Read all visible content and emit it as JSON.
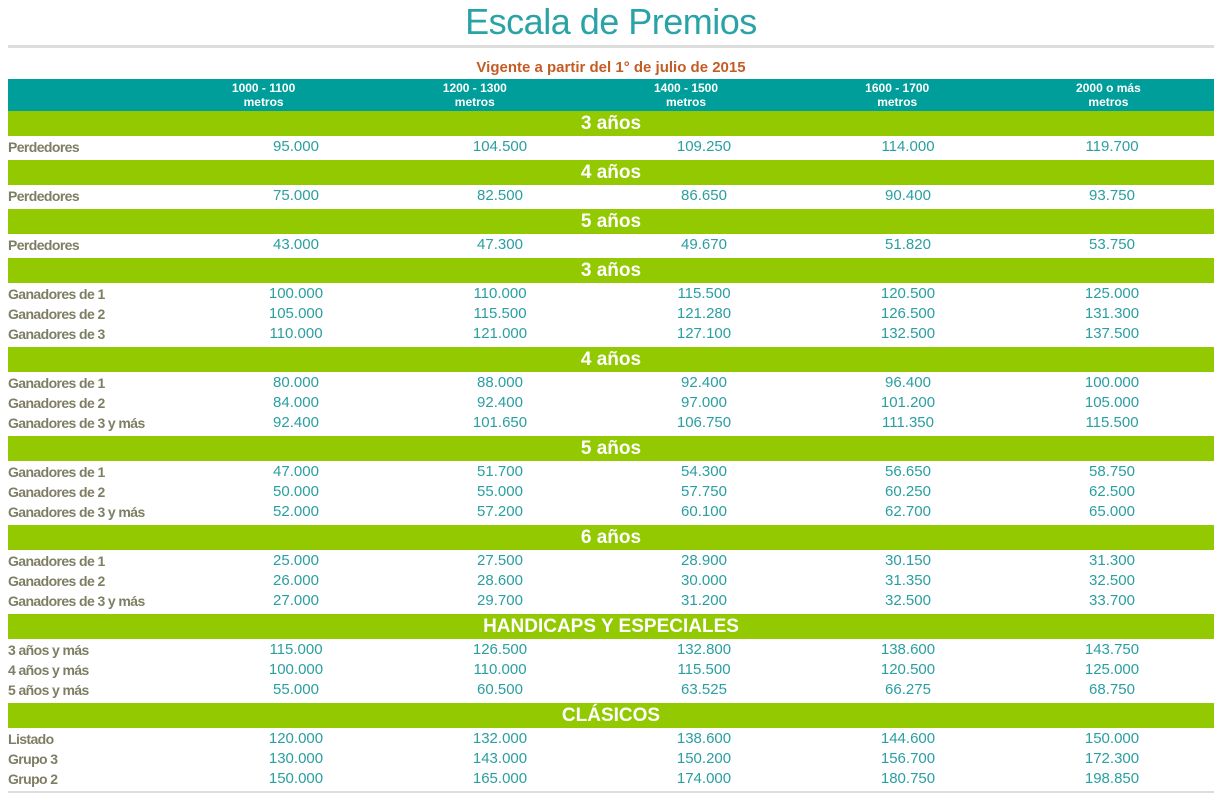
{
  "title": "Escala de Premios",
  "subtitle": "Vigente a partir del 1° de julio de 2015",
  "columns": [
    {
      "range": "1000 - 1100",
      "unit": "metros"
    },
    {
      "range": "1200 - 1300",
      "unit": "metros"
    },
    {
      "range": "1400 - 1500",
      "unit": "metros"
    },
    {
      "range": "1600 - 1700",
      "unit": "metros"
    },
    {
      "range": "2000 o más",
      "unit": "metros"
    }
  ],
  "sections": [
    {
      "heading": "3 años",
      "rows": [
        {
          "label": "Perdedores",
          "values": [
            "95.000",
            "104.500",
            "109.250",
            "114.000",
            "119.700"
          ]
        }
      ]
    },
    {
      "heading": "4 años",
      "rows": [
        {
          "label": "Perdedores",
          "values": [
            "75.000",
            "82.500",
            "86.650",
            "90.400",
            "93.750"
          ]
        }
      ]
    },
    {
      "heading": "5 años",
      "rows": [
        {
          "label": "Perdedores",
          "values": [
            "43.000",
            "47.300",
            "49.670",
            "51.820",
            "53.750"
          ]
        }
      ]
    },
    {
      "heading": "3 años",
      "rows": [
        {
          "label": "Ganadores de 1",
          "values": [
            "100.000",
            "110.000",
            "115.500",
            "120.500",
            "125.000"
          ]
        },
        {
          "label": "Ganadores de 2",
          "values": [
            "105.000",
            "115.500",
            "121.280",
            "126.500",
            "131.300"
          ]
        },
        {
          "label": "Ganadores de 3",
          "values": [
            "110.000",
            "121.000",
            "127.100",
            "132.500",
            "137.500"
          ]
        }
      ]
    },
    {
      "heading": "4 años",
      "rows": [
        {
          "label": "Ganadores de 1",
          "values": [
            "80.000",
            "88.000",
            "92.400",
            "96.400",
            "100.000"
          ]
        },
        {
          "label": "Ganadores de 2",
          "values": [
            "84.000",
            "92.400",
            "97.000",
            "101.200",
            "105.000"
          ]
        },
        {
          "label": "Ganadores de 3 y más",
          "values": [
            "92.400",
            "101.650",
            "106.750",
            "111.350",
            "115.500"
          ]
        }
      ]
    },
    {
      "heading": "5 años",
      "rows": [
        {
          "label": "Ganadores de 1",
          "values": [
            "47.000",
            "51.700",
            "54.300",
            "56.650",
            "58.750"
          ]
        },
        {
          "label": "Ganadores de 2",
          "values": [
            "50.000",
            "55.000",
            "57.750",
            "60.250",
            "62.500"
          ]
        },
        {
          "label": "Ganadores de 3 y más",
          "values": [
            "52.000",
            "57.200",
            "60.100",
            "62.700",
            "65.000"
          ]
        }
      ]
    },
    {
      "heading": "6 años",
      "rows": [
        {
          "label": "Ganadores de 1",
          "values": [
            "25.000",
            "27.500",
            "28.900",
            "30.150",
            "31.300"
          ]
        },
        {
          "label": "Ganadores de 2",
          "values": [
            "26.000",
            "28.600",
            "30.000",
            "31.350",
            "32.500"
          ]
        },
        {
          "label": "Ganadores de 3 y más",
          "values": [
            "27.000",
            "29.700",
            "31.200",
            "32.500",
            "33.700"
          ]
        }
      ]
    },
    {
      "heading": "HANDICAPS Y ESPECIALES",
      "rows": [
        {
          "label": "3 años y más",
          "values": [
            "115.000",
            "126.500",
            "132.800",
            "138.600",
            "143.750"
          ]
        },
        {
          "label": "4 años y más",
          "values": [
            "100.000",
            "110.000",
            "115.500",
            "120.500",
            "125.000"
          ]
        },
        {
          "label": "5 años y más",
          "values": [
            "55.000",
            "60.500",
            "63.525",
            "66.275",
            "68.750"
          ]
        }
      ]
    },
    {
      "heading": "CLÁSICOS",
      "rows": [
        {
          "label": "Listado",
          "values": [
            "120.000",
            "132.000",
            "138.600",
            "144.600",
            "150.000"
          ]
        },
        {
          "label": "Grupo 3",
          "values": [
            "130.000",
            "143.000",
            "150.200",
            "156.700",
            "172.300"
          ]
        },
        {
          "label": "Grupo 2",
          "values": [
            "150.000",
            "165.000",
            "174.000",
            "180.750",
            "198.850"
          ]
        }
      ]
    }
  ],
  "colors": {
    "title": "#2aa3a6",
    "subtitle": "#c45c26",
    "header_bg": "#009e9a",
    "section_bg": "#92c900",
    "label_text": "#7e7e64",
    "value_text": "#2a9ea1"
  }
}
